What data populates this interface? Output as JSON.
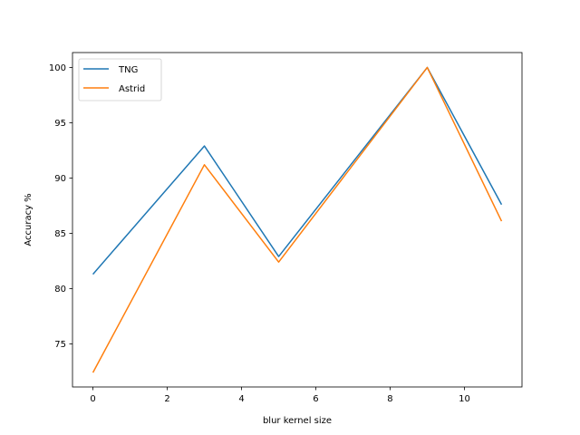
{
  "chart_data": {
    "type": "line",
    "title": "",
    "xlabel": "blur kernel size",
    "ylabel": "Accuracy %",
    "xlim": [
      -0.55,
      11.55
    ],
    "ylim": [
      71.1,
      101.35
    ],
    "xticks": [
      0,
      2,
      4,
      6,
      8,
      10
    ],
    "yticks": [
      75,
      80,
      85,
      90,
      95,
      100
    ],
    "x": [
      0,
      3,
      5,
      9,
      11
    ],
    "series": [
      {
        "name": "TNG",
        "color": "#1f77b4",
        "values": [
          81.3,
          92.9,
          82.9,
          100.0,
          87.6
        ]
      },
      {
        "name": "Astrid",
        "color": "#ff7f0e",
        "values": [
          72.4,
          91.2,
          82.4,
          100.0,
          86.1
        ]
      }
    ],
    "legend": "top-left",
    "grid": false
  }
}
